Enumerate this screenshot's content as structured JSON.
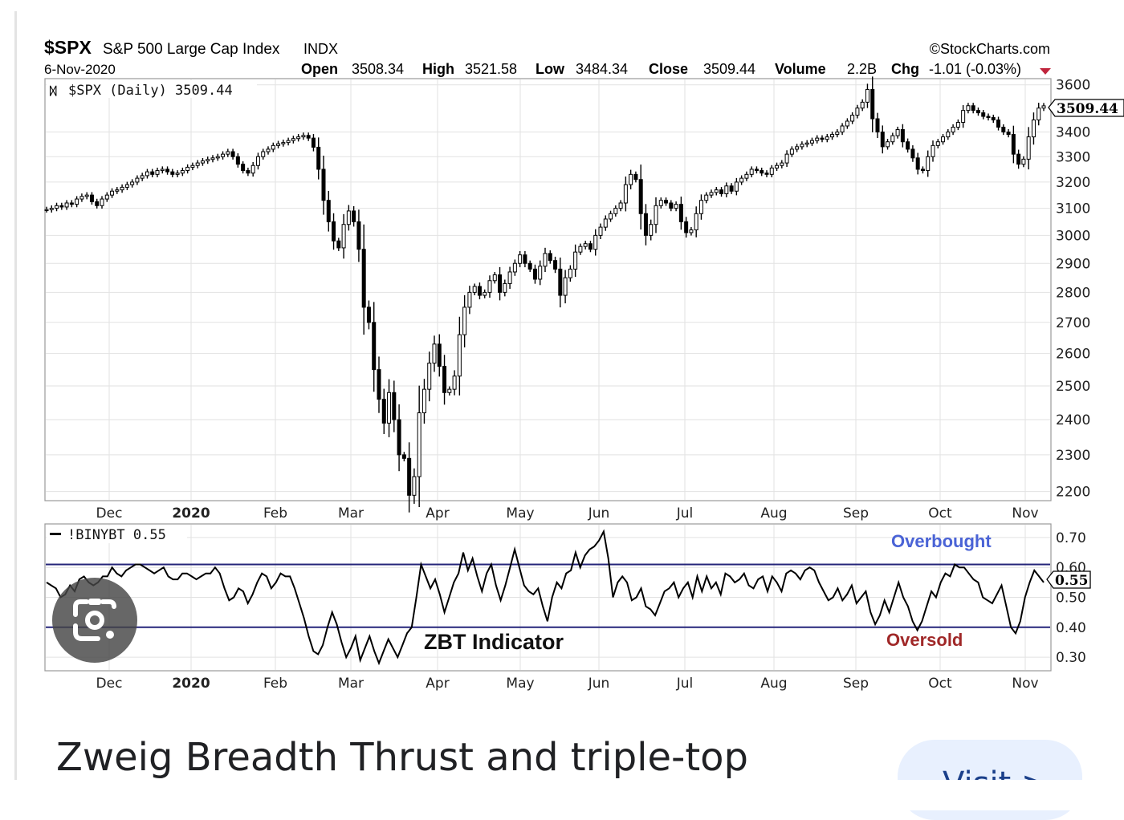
{
  "header": {
    "symbol": "$SPX",
    "name": "S&P 500 Large Cap Index",
    "exchange": "INDX",
    "date": "6-Nov-2020",
    "source": "©StockCharts.com",
    "open_label": "Open",
    "open": "3508.34",
    "high_label": "High",
    "high": "3521.58",
    "low_label": "Low",
    "low": "3484.34",
    "close_label": "Close",
    "close": "3509.44",
    "volume_label": "Volume",
    "volume": "2.2B",
    "chg_label": "Chg",
    "chg": "-1.01 (-0.03%)",
    "chg_marker_color": "#c0243c"
  },
  "main_panel": {
    "legend": "$SPX (Daily) 3509.44",
    "last_value_tag": "3509.44"
  },
  "indicator_panel": {
    "legend": "!BINYBT 0.55",
    "last_value_tag": "0.55",
    "overbought_label": "Overbought",
    "oversold_label": "Oversold",
    "annotation": "ZBT Indicator",
    "overbought_color": "#4a63d6",
    "oversold_color": "#a02828",
    "line_color": "#25257a"
  },
  "chart_data": [
    {
      "type": "candlestick",
      "title": "$SPX (Daily) 3509.44",
      "x_tick_labels": [
        "Dec",
        "2020",
        "Feb",
        "Mar",
        "Apr",
        "May",
        "Jun",
        "Jul",
        "Aug",
        "Sep",
        "Oct",
        "Nov"
      ],
      "y_ticks": [
        2200,
        2300,
        2400,
        2500,
        2600,
        2700,
        2800,
        2900,
        3000,
        3100,
        3200,
        3300,
        3400,
        3600
      ],
      "ylim": [
        2180,
        3620
      ],
      "y_scale": "log",
      "grid": true,
      "series": [
        {
          "values": [
            3095,
            3100,
            3110,
            3105,
            3120,
            3115,
            3135,
            3145,
            3150,
            3125,
            3110,
            3135,
            3150,
            3165,
            3170,
            3180,
            3190,
            3200,
            3215,
            3225,
            3240,
            3230,
            3245,
            3250,
            3240,
            3230,
            3235,
            3245,
            3258,
            3265,
            3275,
            3283,
            3289,
            3295,
            3300,
            3310,
            3320,
            3300,
            3270,
            3245,
            3235,
            3265,
            3300,
            3320,
            3330,
            3345,
            3352,
            3357,
            3365,
            3373,
            3380,
            3386,
            3375,
            3338,
            3250,
            3130,
            3050,
            2980,
            2955,
            3040,
            3090,
            3050,
            2950,
            2750,
            2700,
            2550,
            2460,
            2390,
            2480,
            2400,
            2300,
            2290,
            2190,
            2240,
            2420,
            2490,
            2570,
            2630,
            2560,
            2480,
            2490,
            2530,
            2660,
            2750,
            2800,
            2820,
            2790,
            2800,
            2840,
            2860,
            2800,
            2830,
            2870,
            2900,
            2930,
            2900,
            2880,
            2845,
            2890,
            2935,
            2910,
            2880,
            2790,
            2850,
            2880,
            2940,
            2960,
            2970,
            2950,
            3000,
            3030,
            3060,
            3080,
            3100,
            3120,
            3190,
            3230,
            3210,
            3080,
            3000,
            3040,
            3110,
            3130,
            3120,
            3100,
            3115,
            3050,
            3010,
            3020,
            3080,
            3130,
            3150,
            3160,
            3170,
            3155,
            3185,
            3165,
            3200,
            3215,
            3230,
            3250,
            3245,
            3235,
            3230,
            3255,
            3265,
            3275,
            3310,
            3330,
            3340,
            3350,
            3355,
            3365,
            3375,
            3370,
            3380,
            3390,
            3400,
            3425,
            3445,
            3470,
            3500,
            3525,
            3580,
            3455,
            3400,
            3340,
            3360,
            3385,
            3410,
            3360,
            3330,
            3295,
            3250,
            3245,
            3300,
            3345,
            3360,
            3380,
            3400,
            3420,
            3440,
            3490,
            3510,
            3490,
            3480,
            3465,
            3460,
            3450,
            3420,
            3400,
            3390,
            3310,
            3270,
            3290,
            3380,
            3450,
            3500,
            3509.44
          ]
        }
      ]
    },
    {
      "type": "line",
      "title": "!BINYBT 0.55",
      "x_tick_labels": [
        "Dec",
        "2020",
        "Feb",
        "Mar",
        "Apr",
        "May",
        "Jun",
        "Jul",
        "Aug",
        "Sep",
        "Oct",
        "Nov"
      ],
      "y_ticks": [
        0.3,
        0.4,
        0.5,
        0.6,
        0.7
      ],
      "ylim": [
        0.26,
        0.74
      ],
      "reference_lines": [
        0.61,
        0.4
      ],
      "grid": true,
      "series": [
        {
          "values": [
            0.55,
            0.54,
            0.53,
            0.5,
            0.51,
            0.54,
            0.52,
            0.56,
            0.57,
            0.55,
            0.54,
            0.55,
            0.57,
            0.57,
            0.6,
            0.58,
            0.57,
            0.59,
            0.6,
            0.61,
            0.61,
            0.6,
            0.59,
            0.58,
            0.59,
            0.6,
            0.57,
            0.56,
            0.56,
            0.58,
            0.58,
            0.57,
            0.56,
            0.57,
            0.58,
            0.58,
            0.6,
            0.58,
            0.53,
            0.49,
            0.5,
            0.53,
            0.52,
            0.48,
            0.51,
            0.55,
            0.58,
            0.57,
            0.53,
            0.55,
            0.58,
            0.57,
            0.57,
            0.53,
            0.48,
            0.43,
            0.37,
            0.32,
            0.31,
            0.34,
            0.4,
            0.45,
            0.41,
            0.35,
            0.3,
            0.33,
            0.37,
            0.29,
            0.33,
            0.37,
            0.32,
            0.28,
            0.32,
            0.36,
            0.33,
            0.3,
            0.34,
            0.38,
            0.4,
            0.5,
            0.61,
            0.57,
            0.53,
            0.56,
            0.51,
            0.45,
            0.5,
            0.55,
            0.58,
            0.65,
            0.59,
            0.63,
            0.57,
            0.52,
            0.58,
            0.61,
            0.54,
            0.49,
            0.54,
            0.6,
            0.66,
            0.6,
            0.54,
            0.52,
            0.51,
            0.53,
            0.47,
            0.42,
            0.5,
            0.55,
            0.53,
            0.58,
            0.59,
            0.65,
            0.6,
            0.64,
            0.66,
            0.67,
            0.69,
            0.72,
            0.63,
            0.5,
            0.55,
            0.57,
            0.55,
            0.49,
            0.5,
            0.53,
            0.47,
            0.46,
            0.44,
            0.48,
            0.52,
            0.53,
            0.55,
            0.5,
            0.53,
            0.55,
            0.5,
            0.57,
            0.52,
            0.57,
            0.53,
            0.55,
            0.51,
            0.58,
            0.57,
            0.55,
            0.56,
            0.58,
            0.54,
            0.53,
            0.56,
            0.57,
            0.52,
            0.57,
            0.55,
            0.52,
            0.58,
            0.59,
            0.58,
            0.56,
            0.59,
            0.6,
            0.59,
            0.55,
            0.52,
            0.49,
            0.5,
            0.53,
            0.49,
            0.51,
            0.54,
            0.48,
            0.5,
            0.52,
            0.45,
            0.41,
            0.44,
            0.49,
            0.45,
            0.5,
            0.55,
            0.5,
            0.47,
            0.42,
            0.39,
            0.42,
            0.47,
            0.52,
            0.5,
            0.55,
            0.58,
            0.57,
            0.61,
            0.6,
            0.6,
            0.58,
            0.56,
            0.55,
            0.5,
            0.49,
            0.48,
            0.51,
            0.54,
            0.47,
            0.4,
            0.38,
            0.42,
            0.5,
            0.55,
            0.59,
            0.57,
            0.55
          ]
        }
      ]
    }
  ],
  "caption": {
    "text": "Zweig Breadth Thrust and triple-top",
    "button_label": "Visit >"
  },
  "lens_button": {
    "icon": "google-lens-icon"
  }
}
